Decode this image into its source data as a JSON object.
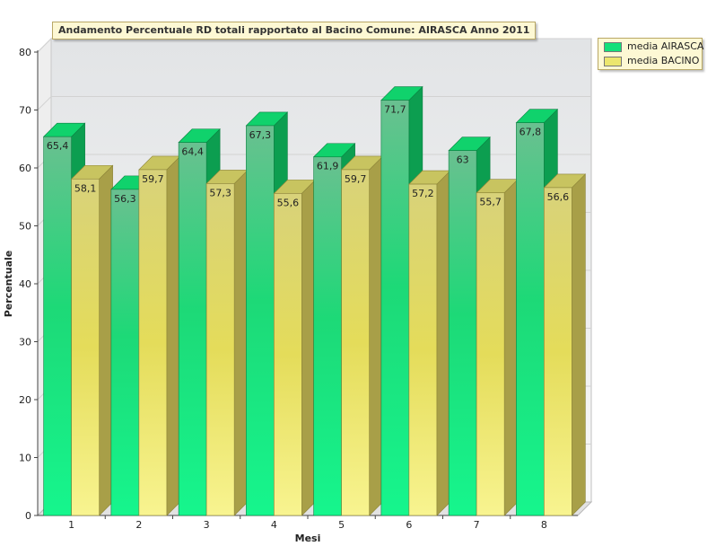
{
  "chart_data": {
    "type": "bar",
    "title": "Andamento Percentuale RD totali rapportato al Bacino Comune: AIRASCA Anno 2011",
    "xlabel": "Mesi",
    "ylabel": "Percentuale",
    "categories": [
      "1",
      "2",
      "3",
      "4",
      "5",
      "6",
      "7",
      "8"
    ],
    "ylim": [
      0,
      80
    ],
    "yticks": [
      0,
      10,
      20,
      30,
      40,
      50,
      60,
      70,
      80
    ],
    "grid": true,
    "legend_position": "top-right",
    "series": [
      {
        "name": "media AIRASCA",
        "values": [
          65.4,
          56.3,
          64.4,
          67.3,
          61.9,
          71.7,
          63,
          67.8
        ],
        "labels": [
          "65,4",
          "56,3",
          "64,4",
          "67,3",
          "61,9",
          "71,7",
          "63",
          "67,8"
        ],
        "color": "#13e07a"
      },
      {
        "name": "media BACINO",
        "values": [
          58.1,
          59.7,
          57.3,
          55.6,
          59.7,
          57.2,
          55.7,
          56.6
        ],
        "labels": [
          "58,1",
          "59,7",
          "57,3",
          "55,6",
          "59,7",
          "57,2",
          "55,7",
          "56,6"
        ],
        "color": "#ece66e"
      }
    ]
  }
}
